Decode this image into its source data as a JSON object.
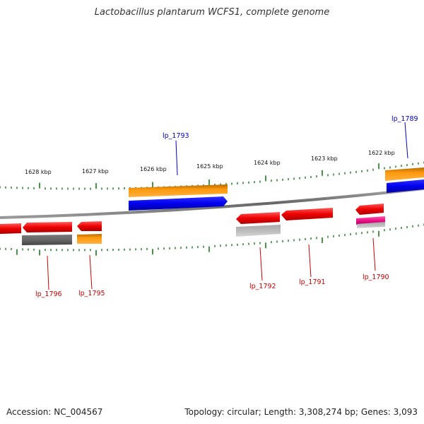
{
  "title": "Lactobacillus plantarum WCFS1, complete genome",
  "accession": "Accession: NC_004567",
  "summary": "Topology: circular; Length: 3,308,274 bp; Genes: 3,093",
  "colors": {
    "backbone": "#808080",
    "tick": "#1a7a1a",
    "forward_label": "#0000cc",
    "reverse_label": "#cc0000"
  },
  "kbp_labels": [
    "1628 kbp",
    "1627 kbp",
    "1626 kbp",
    "1625 kbp",
    "1624 kbp",
    "1623 kbp",
    "1622 kbp"
  ],
  "gene_labels": {
    "lp_1793": "lp_1793",
    "lp_1789": "lp_1789",
    "lp_1796": "lp_1796",
    "lp_1795": "lp_1795",
    "lp_1792": "lp_1792",
    "lp_1791": "lp_1791",
    "lp_1790": "lp_1790"
  }
}
